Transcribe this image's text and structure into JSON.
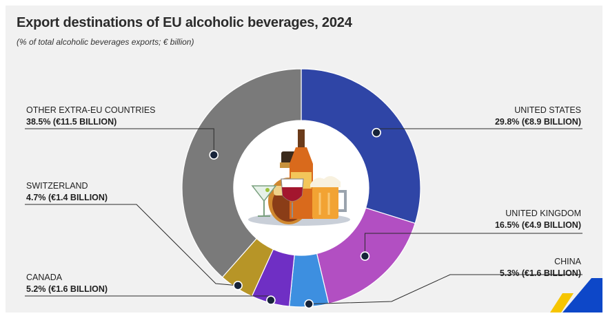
{
  "header": {
    "title": "Export destinations of EU alcoholic beverages, 2024",
    "subtitle": "(% of total alcoholic beverages exports; € billion)"
  },
  "chart_data": {
    "type": "pie",
    "variant": "donut",
    "title": "Export destinations of EU alcoholic beverages, 2024",
    "subtitle": "(% of total alcoholic beverages exports; € billion)",
    "unit": "% of total alcoholic beverages exports; € billion",
    "slices": [
      {
        "name": "UNITED STATES",
        "value": 29.8,
        "amount_label": "29.8% (€8.9 BILLION)",
        "color": "#2f45a6"
      },
      {
        "name": "UNITED KINGDOM",
        "value": 16.5,
        "amount_label": "16.5% (€4.9 BILLION)",
        "color": "#b24fc2"
      },
      {
        "name": "CHINA",
        "value": 5.3,
        "amount_label": "5.3% (€1.6 BILLION)",
        "color": "#3d8fe0"
      },
      {
        "name": "CANADA",
        "value": 5.2,
        "amount_label": "5.2% (€1.6 BILLION)",
        "color": "#6f2fc4"
      },
      {
        "name": "SWITZERLAND",
        "value": 4.7,
        "amount_label": "4.7% (€1.4 BILLION)",
        "color": "#b79527"
      },
      {
        "name": "OTHER EXTRA-EU COUNTRIES",
        "value": 38.5,
        "amount_label": "38.5% (€11.5 BILLION)",
        "color": "#7a7a7a"
      }
    ]
  },
  "brand": {
    "colors": [
      "#f6c500",
      "#0d47c8"
    ]
  }
}
